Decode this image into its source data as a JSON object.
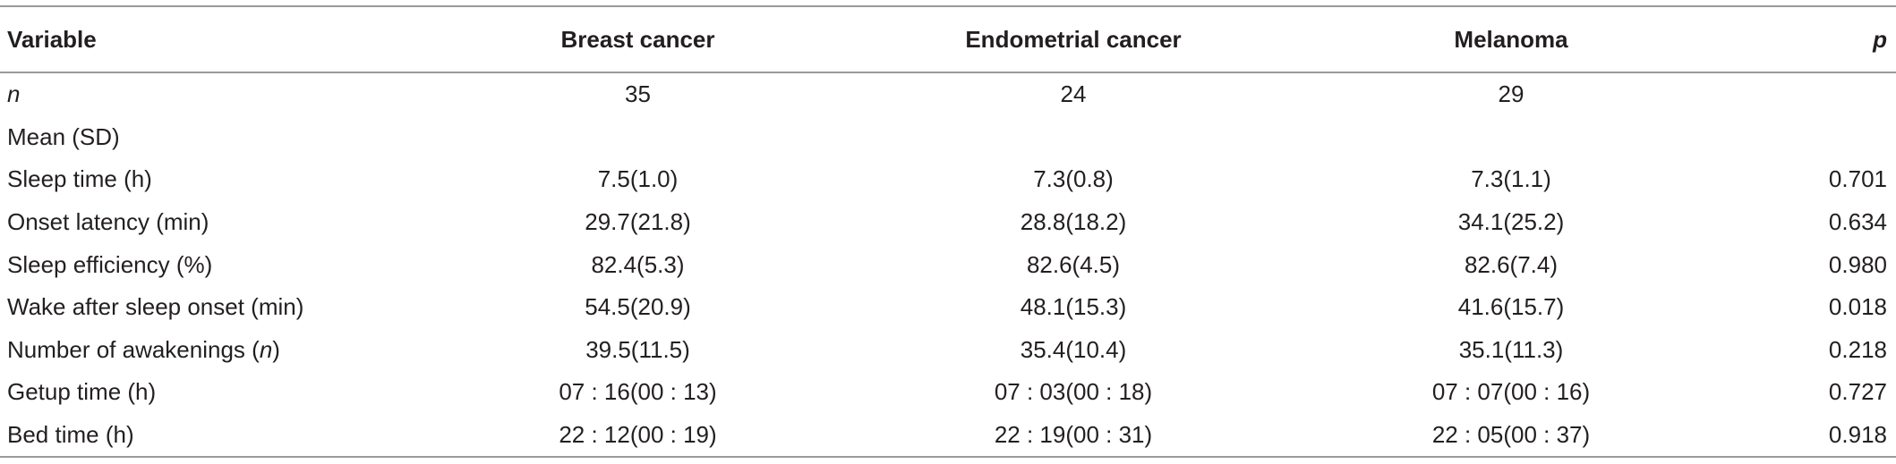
{
  "table": {
    "header": [
      "Variable",
      "Breast cancer",
      "Endometrial cancer",
      "Melanoma",
      "p"
    ],
    "rows": [
      [
        "n",
        "35",
        "24",
        "29",
        ""
      ],
      [
        "Mean (SD)"
      ],
      [
        "Sleep time (h)",
        "7.5(1.0)",
        "7.3(0.8)",
        "7.3(1.1)",
        "0.701"
      ],
      [
        "Onset latency (min)",
        "29.7(21.8)",
        "28.8(18.2)",
        "34.1(25.2)",
        "0.634"
      ],
      [
        "Sleep efficiency (%)",
        "82.4(5.3)",
        "82.6(4.5)",
        "82.6(7.4)",
        "0.980"
      ],
      [
        "Wake after sleep onset (min)",
        "54.5(20.9)",
        "48.1(15.3)",
        "41.6(15.7)",
        "0.018"
      ],
      [
        [
          "Number of awakenings (",
          "n",
          ")"
        ],
        "39.5(11.5)",
        "35.4(10.4)",
        "35.1(11.3)",
        "0.218"
      ],
      [
        "Getup time (h)",
        "07 : 16(00 : 13)",
        "07 : 03(00 : 18)",
        "07 : 07(00 : 16)",
        "0.727"
      ],
      [
        "Bed time (h)",
        "22 : 12(00 : 19)",
        "22 : 19(00 : 31)",
        "22 : 05(00 : 37)",
        "0.918"
      ]
    ]
  }
}
